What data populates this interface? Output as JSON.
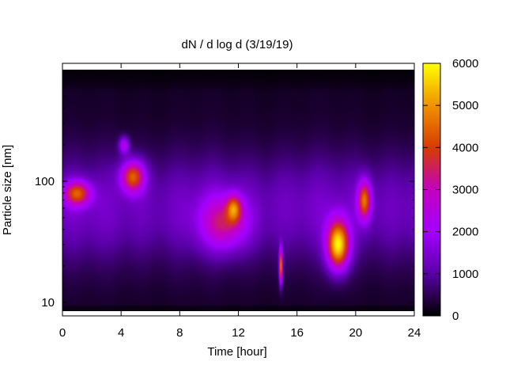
{
  "chart_data": {
    "type": "heatmap",
    "title": "dN / d log d (3/19/19)",
    "xlabel": "Time [hour]",
    "ylabel": "Particle size [nm]",
    "xlim": [
      0,
      24
    ],
    "ylim_nm": [
      8,
      850
    ],
    "y_scale": "log",
    "x_ticks": [
      0,
      4,
      8,
      12,
      16,
      20,
      24
    ],
    "x_tick_labels": [
      "0",
      "4",
      "8",
      "12",
      "16",
      "20",
      "24"
    ],
    "y_ticks": [
      10,
      100
    ],
    "y_tick_labels": [
      "10",
      "100"
    ],
    "colorbar": {
      "min": 0,
      "max": 6000,
      "ticks": [
        0,
        1000,
        2000,
        3000,
        4000,
        5000,
        6000
      ],
      "tick_labels": [
        "0",
        "1000",
        "2000",
        "3000",
        "4000",
        "5000",
        "6000"
      ],
      "palette_stops": [
        "#000000",
        "#5a00a8",
        "#a400ff",
        "#c400c0",
        "#d63c00",
        "#f09200",
        "#ffff00"
      ]
    },
    "background_level": {
      "base": 250,
      "peak": 1450,
      "peak_size_nm": 60
    },
    "features": [
      {
        "label": "mode near 80 nm, early morning",
        "time_h": 1.0,
        "size_nm": 80,
        "peak": 3200
      },
      {
        "label": "mode near 110 nm, 4-5 h",
        "time_h": 4.8,
        "size_nm": 110,
        "peak": 3500
      },
      {
        "label": "band near 200 nm, 3.5-5 h",
        "time_h": 4.2,
        "size_nm": 200,
        "peak": 1900
      },
      {
        "label": "broad mode 30-60 nm, 9-12 h",
        "time_h": 11.0,
        "size_nm": 45,
        "peak": 2200
      },
      {
        "label": "mode near 60 nm, 11-12 h",
        "time_h": 11.7,
        "size_nm": 60,
        "peak": 2700
      },
      {
        "label": "narrow burst near 20 nm, 15 h",
        "time_h": 14.9,
        "size_nm": 20,
        "peak": 4300
      },
      {
        "label": "growth event near 30 nm, 18-20 h",
        "time_h": 18.8,
        "size_nm": 30,
        "peak": 5100
      },
      {
        "label": "mode near 70 nm, 20-21.5 h",
        "time_h": 20.6,
        "size_nm": 70,
        "peak": 3500
      }
    ]
  }
}
